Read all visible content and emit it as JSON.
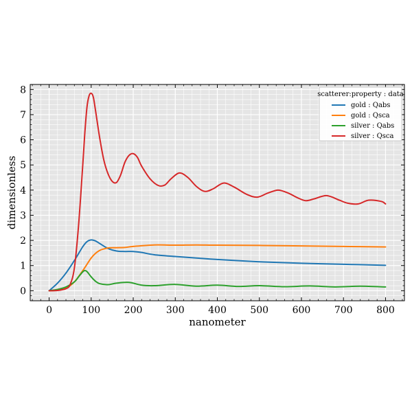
{
  "chart_data": {
    "type": "line",
    "title": "",
    "xlabel": "nanometer",
    "ylabel": "dimensionless",
    "xlim": [
      -45,
      845
    ],
    "ylim": [
      -0.4,
      8.2
    ],
    "xticks": [
      0,
      100,
      200,
      300,
      400,
      500,
      600,
      700,
      800
    ],
    "yticks": [
      0,
      1,
      2,
      3,
      4,
      5,
      6,
      7,
      8
    ],
    "grid": true,
    "legend": {
      "title": "scatterer:property : data",
      "position": "top-right"
    },
    "series": [
      {
        "name": "gold : Qabs",
        "color": "#1f77b4",
        "x": [
          0,
          20,
          40,
          60,
          80,
          90,
          100,
          110,
          120,
          140,
          160,
          180,
          200,
          220,
          250,
          300,
          350,
          400,
          500,
          600,
          700,
          800
        ],
        "y": [
          0,
          0.3,
          0.7,
          1.2,
          1.75,
          1.95,
          2.02,
          1.98,
          1.88,
          1.68,
          1.58,
          1.56,
          1.56,
          1.52,
          1.43,
          1.36,
          1.3,
          1.24,
          1.15,
          1.09,
          1.05,
          1.01
        ]
      },
      {
        "name": "gold : Qsca",
        "color": "#ff7f0e",
        "x": [
          0,
          20,
          40,
          60,
          80,
          90,
          100,
          110,
          120,
          130,
          140,
          160,
          180,
          200,
          250,
          300,
          350,
          400,
          500,
          600,
          700,
          800
        ],
        "y": [
          0,
          0.02,
          0.1,
          0.35,
          0.8,
          1.05,
          1.3,
          1.48,
          1.6,
          1.66,
          1.7,
          1.71,
          1.72,
          1.76,
          1.82,
          1.81,
          1.82,
          1.81,
          1.8,
          1.78,
          1.76,
          1.74
        ]
      },
      {
        "name": "silver : Qabs",
        "color": "#2ca02c",
        "x": [
          0,
          20,
          40,
          60,
          70,
          80,
          85,
          90,
          100,
          110,
          120,
          140,
          160,
          190,
          220,
          250,
          300,
          350,
          400,
          450,
          500,
          560,
          620,
          680,
          740,
          800
        ],
        "y": [
          0,
          0.05,
          0.15,
          0.35,
          0.55,
          0.75,
          0.8,
          0.76,
          0.55,
          0.38,
          0.28,
          0.24,
          0.3,
          0.33,
          0.22,
          0.2,
          0.25,
          0.18,
          0.22,
          0.17,
          0.2,
          0.16,
          0.19,
          0.15,
          0.18,
          0.15
        ]
      },
      {
        "name": "silver : Qsca",
        "color": "#d62728",
        "x": [
          0,
          20,
          40,
          50,
          60,
          70,
          80,
          85,
          90,
          95,
          100,
          105,
          110,
          120,
          130,
          140,
          150,
          160,
          170,
          180,
          190,
          200,
          210,
          220,
          240,
          260,
          275,
          290,
          310,
          330,
          350,
          370,
          390,
          415,
          440,
          470,
          495,
          520,
          545,
          570,
          590,
          610,
          630,
          660,
          690,
          710,
          735,
          760,
          790,
          800
        ],
        "y": [
          0,
          0.01,
          0.08,
          0.25,
          0.9,
          2.6,
          5.0,
          6.3,
          7.3,
          7.75,
          7.85,
          7.7,
          7.2,
          6.1,
          5.2,
          4.65,
          4.35,
          4.3,
          4.6,
          5.1,
          5.38,
          5.45,
          5.3,
          4.95,
          4.45,
          4.18,
          4.2,
          4.45,
          4.68,
          4.5,
          4.15,
          3.95,
          4.05,
          4.28,
          4.12,
          3.83,
          3.72,
          3.88,
          4.0,
          3.87,
          3.7,
          3.58,
          3.65,
          3.78,
          3.6,
          3.48,
          3.45,
          3.6,
          3.55,
          3.45
        ]
      }
    ]
  }
}
